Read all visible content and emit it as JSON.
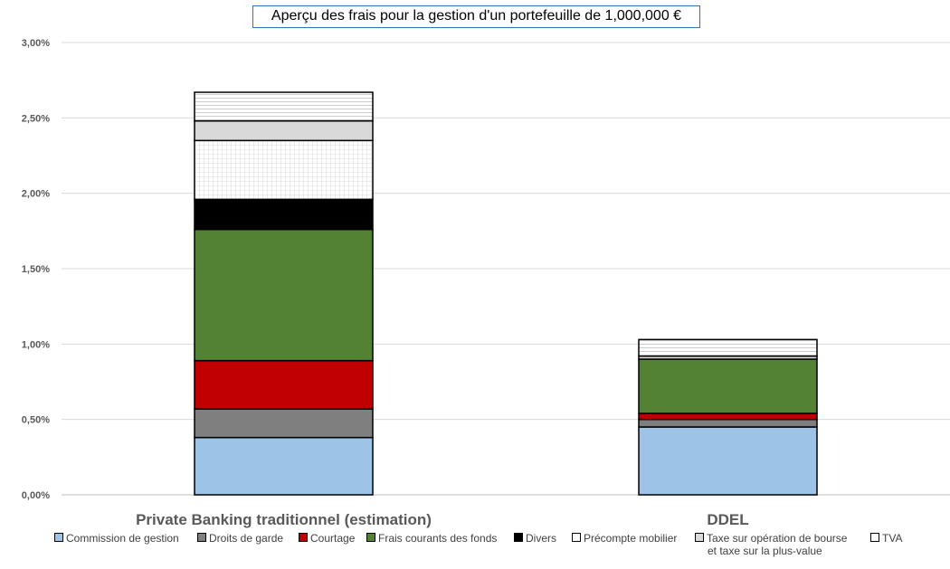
{
  "chart_data": {
    "type": "bar",
    "stacked": true,
    "title": "Aperçu des frais pour la gestion d'un portefeuille de 1,000,000 €",
    "categories": [
      "Private Banking traditionnel (estimation)",
      "DDEL"
    ],
    "ylim": [
      0,
      3.0
    ],
    "yticks": [
      "0,00%",
      "0,50%",
      "1,00%",
      "1,50%",
      "2,00%",
      "2,50%",
      "3,00%"
    ],
    "grid": true,
    "legend_position": "bottom",
    "series": [
      {
        "name": "Commission de gestion",
        "values": [
          0.38,
          0.45
        ],
        "color": "#9dc3e6",
        "pattern": "solid"
      },
      {
        "name": "Droits de garde",
        "values": [
          0.19,
          0.05
        ],
        "color": "#7f7f7f",
        "pattern": "solid"
      },
      {
        "name": "Courtage",
        "values": [
          0.32,
          0.04
        ],
        "color": "#c00000",
        "pattern": "solid"
      },
      {
        "name": "Frais courants des fonds",
        "values": [
          0.87,
          0.36
        ],
        "color": "#548235",
        "pattern": "solid"
      },
      {
        "name": "Divers",
        "values": [
          0.2,
          0.0
        ],
        "color": "#000000",
        "pattern": "solid"
      },
      {
        "name": "Précompte mobilier",
        "values": [
          0.39,
          0.0
        ],
        "color": "#ffffff",
        "pattern": "grid"
      },
      {
        "name": "Taxe sur opération de bourse et taxe sur la plus-value",
        "values": [
          0.13,
          0.02
        ],
        "color": "#d9d9d9",
        "pattern": "solid"
      },
      {
        "name": "TVA",
        "values": [
          0.19,
          0.11
        ],
        "color": "#ffffff",
        "pattern": "hlines"
      }
    ]
  },
  "legend": {
    "items": [
      {
        "label": "Commission de gestion",
        "label2": ""
      },
      {
        "label": "Droits de garde",
        "label2": ""
      },
      {
        "label": "Courtage",
        "label2": ""
      },
      {
        "label": "Frais courants des fonds",
        "label2": ""
      },
      {
        "label": "Divers",
        "label2": ""
      },
      {
        "label": "Précompte mobilier",
        "label2": ""
      },
      {
        "label": "Taxe sur opération de bourse",
        "label2": "et taxe sur la plus-value"
      },
      {
        "label": "TVA",
        "label2": ""
      }
    ]
  }
}
